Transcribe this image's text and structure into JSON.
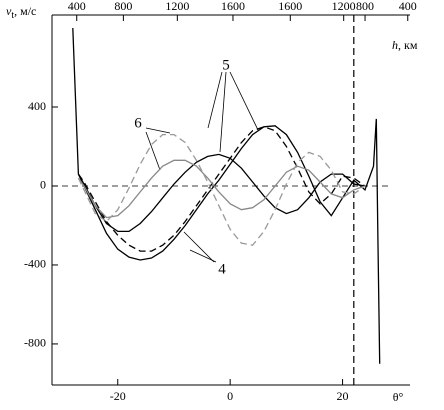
{
  "chart_data": {
    "type": "line",
    "y_label": "v",
    "y_label_sub": "t",
    "y_label_unit": ", м/с",
    "x_label": "θ°",
    "top_label_var": "h",
    "top_label_unit": ", км",
    "xlim": [
      -31.7,
      32
    ],
    "ylim": [
      -1008,
      866
    ],
    "xticks": [
      -20,
      0,
      20
    ],
    "yticks": [
      400,
      0,
      -400,
      -800
    ],
    "top_ticks": [
      {
        "value": -27.3,
        "label": "400"
      },
      {
        "value": -19,
        "label": "800"
      },
      {
        "value": -9.4,
        "label": "1200"
      },
      {
        "value": 0.5,
        "label": "1600"
      },
      {
        "value": 10.7,
        "label": "1600"
      },
      {
        "value": 20.2,
        "label": "1200"
      },
      {
        "value": 24,
        "label": "800"
      },
      {
        "value": 31.6,
        "label": "400"
      }
    ],
    "hline": 0,
    "vline": 22,
    "annotations": [
      "4",
      "5",
      "6"
    ],
    "series": [
      {
        "color": "#000000",
        "dash": false,
        "x": [
          -28,
          -27,
          -26,
          -24,
          -22,
          -20,
          -18,
          -16,
          -14,
          -12,
          -10,
          -8,
          -6,
          -4,
          -2,
          0,
          2,
          4,
          6,
          8,
          10,
          12,
          14,
          16,
          18,
          20,
          22,
          24,
          25.5,
          26,
          26.3,
          26.6
        ],
        "values": [
          800,
          60,
          0,
          -120,
          -240,
          -320,
          -360,
          -375,
          -365,
          -330,
          -270,
          -200,
          -120,
          -40,
          30,
          110,
          190,
          260,
          300,
          305,
          260,
          170,
          50,
          -80,
          -150,
          -60,
          30,
          -20,
          100,
          340,
          -300,
          -900
        ]
      },
      {
        "color": "#000000",
        "dash": true,
        "x": [
          -27,
          -26,
          -24,
          -22,
          -20,
          -18,
          -16,
          -14,
          -12,
          -10,
          -8,
          -6,
          -4,
          -2,
          0,
          2,
          4,
          6,
          8,
          10,
          12,
          14,
          16,
          18,
          20,
          22,
          24
        ],
        "values": [
          60,
          20,
          -80,
          -180,
          -250,
          -300,
          -330,
          -330,
          -300,
          -250,
          -180,
          -100,
          -20,
          60,
          140,
          220,
          280,
          300,
          280,
          200,
          90,
          -30,
          -90,
          -40,
          50,
          40,
          0
        ]
      },
      {
        "color": "#000000",
        "dash": false,
        "x": [
          -27,
          -26,
          -24,
          -22,
          -20,
          -18,
          -16,
          -14,
          -12,
          -10,
          -8,
          -6,
          -4,
          -2,
          0,
          2,
          4,
          6,
          8,
          10,
          12,
          14,
          16,
          18,
          20,
          22,
          24
        ],
        "values": [
          60,
          10,
          -100,
          -190,
          -230,
          -230,
          -190,
          -130,
          -60,
          10,
          70,
          120,
          150,
          160,
          140,
          90,
          20,
          -50,
          -110,
          -140,
          -120,
          -60,
          20,
          60,
          60,
          10,
          0
        ]
      },
      {
        "color": "#888888",
        "dash": false,
        "x": [
          -27,
          -26,
          -24,
          -22,
          -20,
          -18,
          -16,
          -14,
          -12,
          -10,
          -8,
          -6,
          -4,
          -2,
          0,
          2,
          4,
          6,
          8,
          10,
          12,
          14,
          16,
          18,
          20,
          22,
          24
        ],
        "values": [
          40,
          0,
          -100,
          -160,
          -150,
          -100,
          -30,
          40,
          100,
          130,
          130,
          100,
          40,
          -30,
          -90,
          -120,
          -110,
          -70,
          0,
          70,
          100,
          80,
          20,
          -40,
          -60,
          -20,
          0
        ]
      },
      {
        "color": "#999999",
        "dash": true,
        "x": [
          -27,
          -26,
          -24,
          -22,
          -20,
          -18,
          -16,
          -14,
          -12,
          -10,
          -8,
          -6,
          -4,
          -2,
          0,
          2,
          4,
          6,
          8,
          10,
          12,
          14,
          16,
          18,
          20,
          22,
          24
        ],
        "values": [
          40,
          -20,
          -140,
          -180,
          -120,
          -10,
          110,
          210,
          260,
          260,
          220,
          130,
          20,
          -100,
          -220,
          -290,
          -300,
          -230,
          -120,
          10,
          120,
          170,
          150,
          80,
          -30,
          -40,
          0
        ]
      }
    ]
  }
}
